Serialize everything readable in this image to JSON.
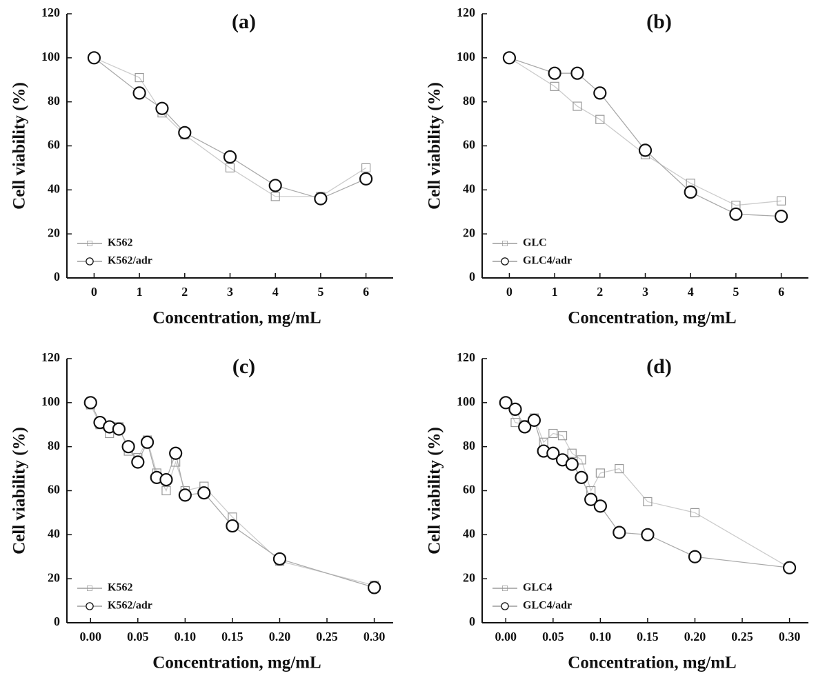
{
  "chart_data": [
    {
      "type": "line",
      "title": "(a)",
      "x_label": "Concentration, mg/mL",
      "y_label": "Cell viability (%)",
      "x": [
        0,
        1,
        1.5,
        2,
        3,
        4,
        5,
        6
      ],
      "series": [
        {
          "name": "K562",
          "color": "#999999",
          "marker": "square",
          "values": [
            100,
            91,
            75,
            65,
            50,
            37,
            37,
            50
          ]
        },
        {
          "name": "K562/adr",
          "color": "#111111",
          "marker": "circle",
          "values": [
            100,
            84,
            77,
            66,
            55,
            42,
            36,
            45
          ]
        }
      ],
      "xlim": [
        -0.6,
        6.6
      ],
      "ylim": [
        0,
        120
      ],
      "xticks": [
        0,
        1,
        2,
        3,
        4,
        5,
        6
      ],
      "yticks": [
        0,
        20,
        40,
        60,
        80,
        100,
        120
      ],
      "legend": "lower left"
    },
    {
      "type": "line",
      "title": "(b)",
      "x_label": "Concentration, mg/mL",
      "y_label": "Cell viability (%)",
      "x": [
        0,
        1,
        1.5,
        2,
        3,
        4,
        5,
        6
      ],
      "series": [
        {
          "name": "GLC",
          "color": "#999999",
          "marker": "square",
          "values": [
            100,
            87,
            78,
            72,
            56,
            43,
            33,
            35
          ]
        },
        {
          "name": "GLC4/adr",
          "color": "#111111",
          "marker": "circle",
          "values": [
            100,
            93,
            93,
            84,
            58,
            39,
            29,
            28
          ]
        }
      ],
      "xlim": [
        -0.6,
        6.6
      ],
      "ylim": [
        0,
        120
      ],
      "xticks": [
        0,
        1,
        2,
        3,
        4,
        5,
        6
      ],
      "yticks": [
        0,
        20,
        40,
        60,
        80,
        100,
        120
      ],
      "legend": "lower left"
    },
    {
      "type": "line",
      "title": "(c)",
      "x_label": "Concentration, mg/mL",
      "y_label": "Cell viability (%)",
      "x": [
        0,
        0.01,
        0.02,
        0.03,
        0.04,
        0.05,
        0.06,
        0.07,
        0.08,
        0.09,
        0.1,
        0.12,
        0.15,
        0.2,
        0.3
      ],
      "series": [
        {
          "name": "K562",
          "color": "#999999",
          "marker": "square",
          "values": [
            99,
            90,
            86,
            89,
            78,
            75,
            83,
            68,
            60,
            73,
            60,
            62,
            48,
            28,
            17
          ]
        },
        {
          "name": "K562/adr",
          "color": "#111111",
          "marker": "circle",
          "values": [
            100,
            91,
            89,
            88,
            80,
            73,
            82,
            66,
            65,
            77,
            58,
            59,
            44,
            29,
            16
          ]
        }
      ],
      "xlim": [
        -0.025,
        0.32
      ],
      "ylim": [
        0,
        120
      ],
      "xticks": [
        {
          "value": 0,
          "label": "0.00"
        },
        0.05,
        {
          "value": 0.1,
          "label": "0.10"
        },
        0.15,
        {
          "value": 0.2,
          "label": "0.20"
        },
        0.25,
        {
          "value": 0.3,
          "label": "0.30"
        }
      ],
      "yticks": [
        0,
        20,
        40,
        60,
        80,
        100,
        120
      ],
      "legend": "lower left"
    },
    {
      "type": "line",
      "title": "(d)",
      "x_label": "Concentration, mg/mL",
      "y_label": "Cell viability (%)",
      "x": [
        0,
        0.01,
        0.02,
        0.03,
        0.04,
        0.05,
        0.06,
        0.07,
        0.08,
        0.09,
        0.1,
        0.12,
        0.15,
        0.2,
        0.3
      ],
      "series": [
        {
          "name": "GLC4",
          "color": "#999999",
          "marker": "square",
          "values": [
            100,
            91,
            90,
            93,
            82,
            86,
            85,
            77,
            74,
            60,
            68,
            70,
            55,
            50,
            25
          ]
        },
        {
          "name": "GLC4/adr",
          "color": "#111111",
          "marker": "circle",
          "values": [
            100,
            97,
            89,
            92,
            78,
            77,
            74,
            72,
            66,
            56,
            53,
            41,
            40,
            30,
            25
          ]
        }
      ],
      "xlim": [
        -0.025,
        0.32
      ],
      "ylim": [
        0,
        120
      ],
      "xticks": [
        {
          "value": 0,
          "label": "0.00"
        },
        0.05,
        {
          "value": 0.1,
          "label": "0.10"
        },
        0.15,
        {
          "value": 0.2,
          "label": "0.20"
        },
        0.25,
        {
          "value": 0.3,
          "label": "0.30"
        }
      ],
      "yticks": [
        0,
        20,
        40,
        60,
        80,
        100,
        120
      ],
      "legend": "lower left"
    }
  ]
}
